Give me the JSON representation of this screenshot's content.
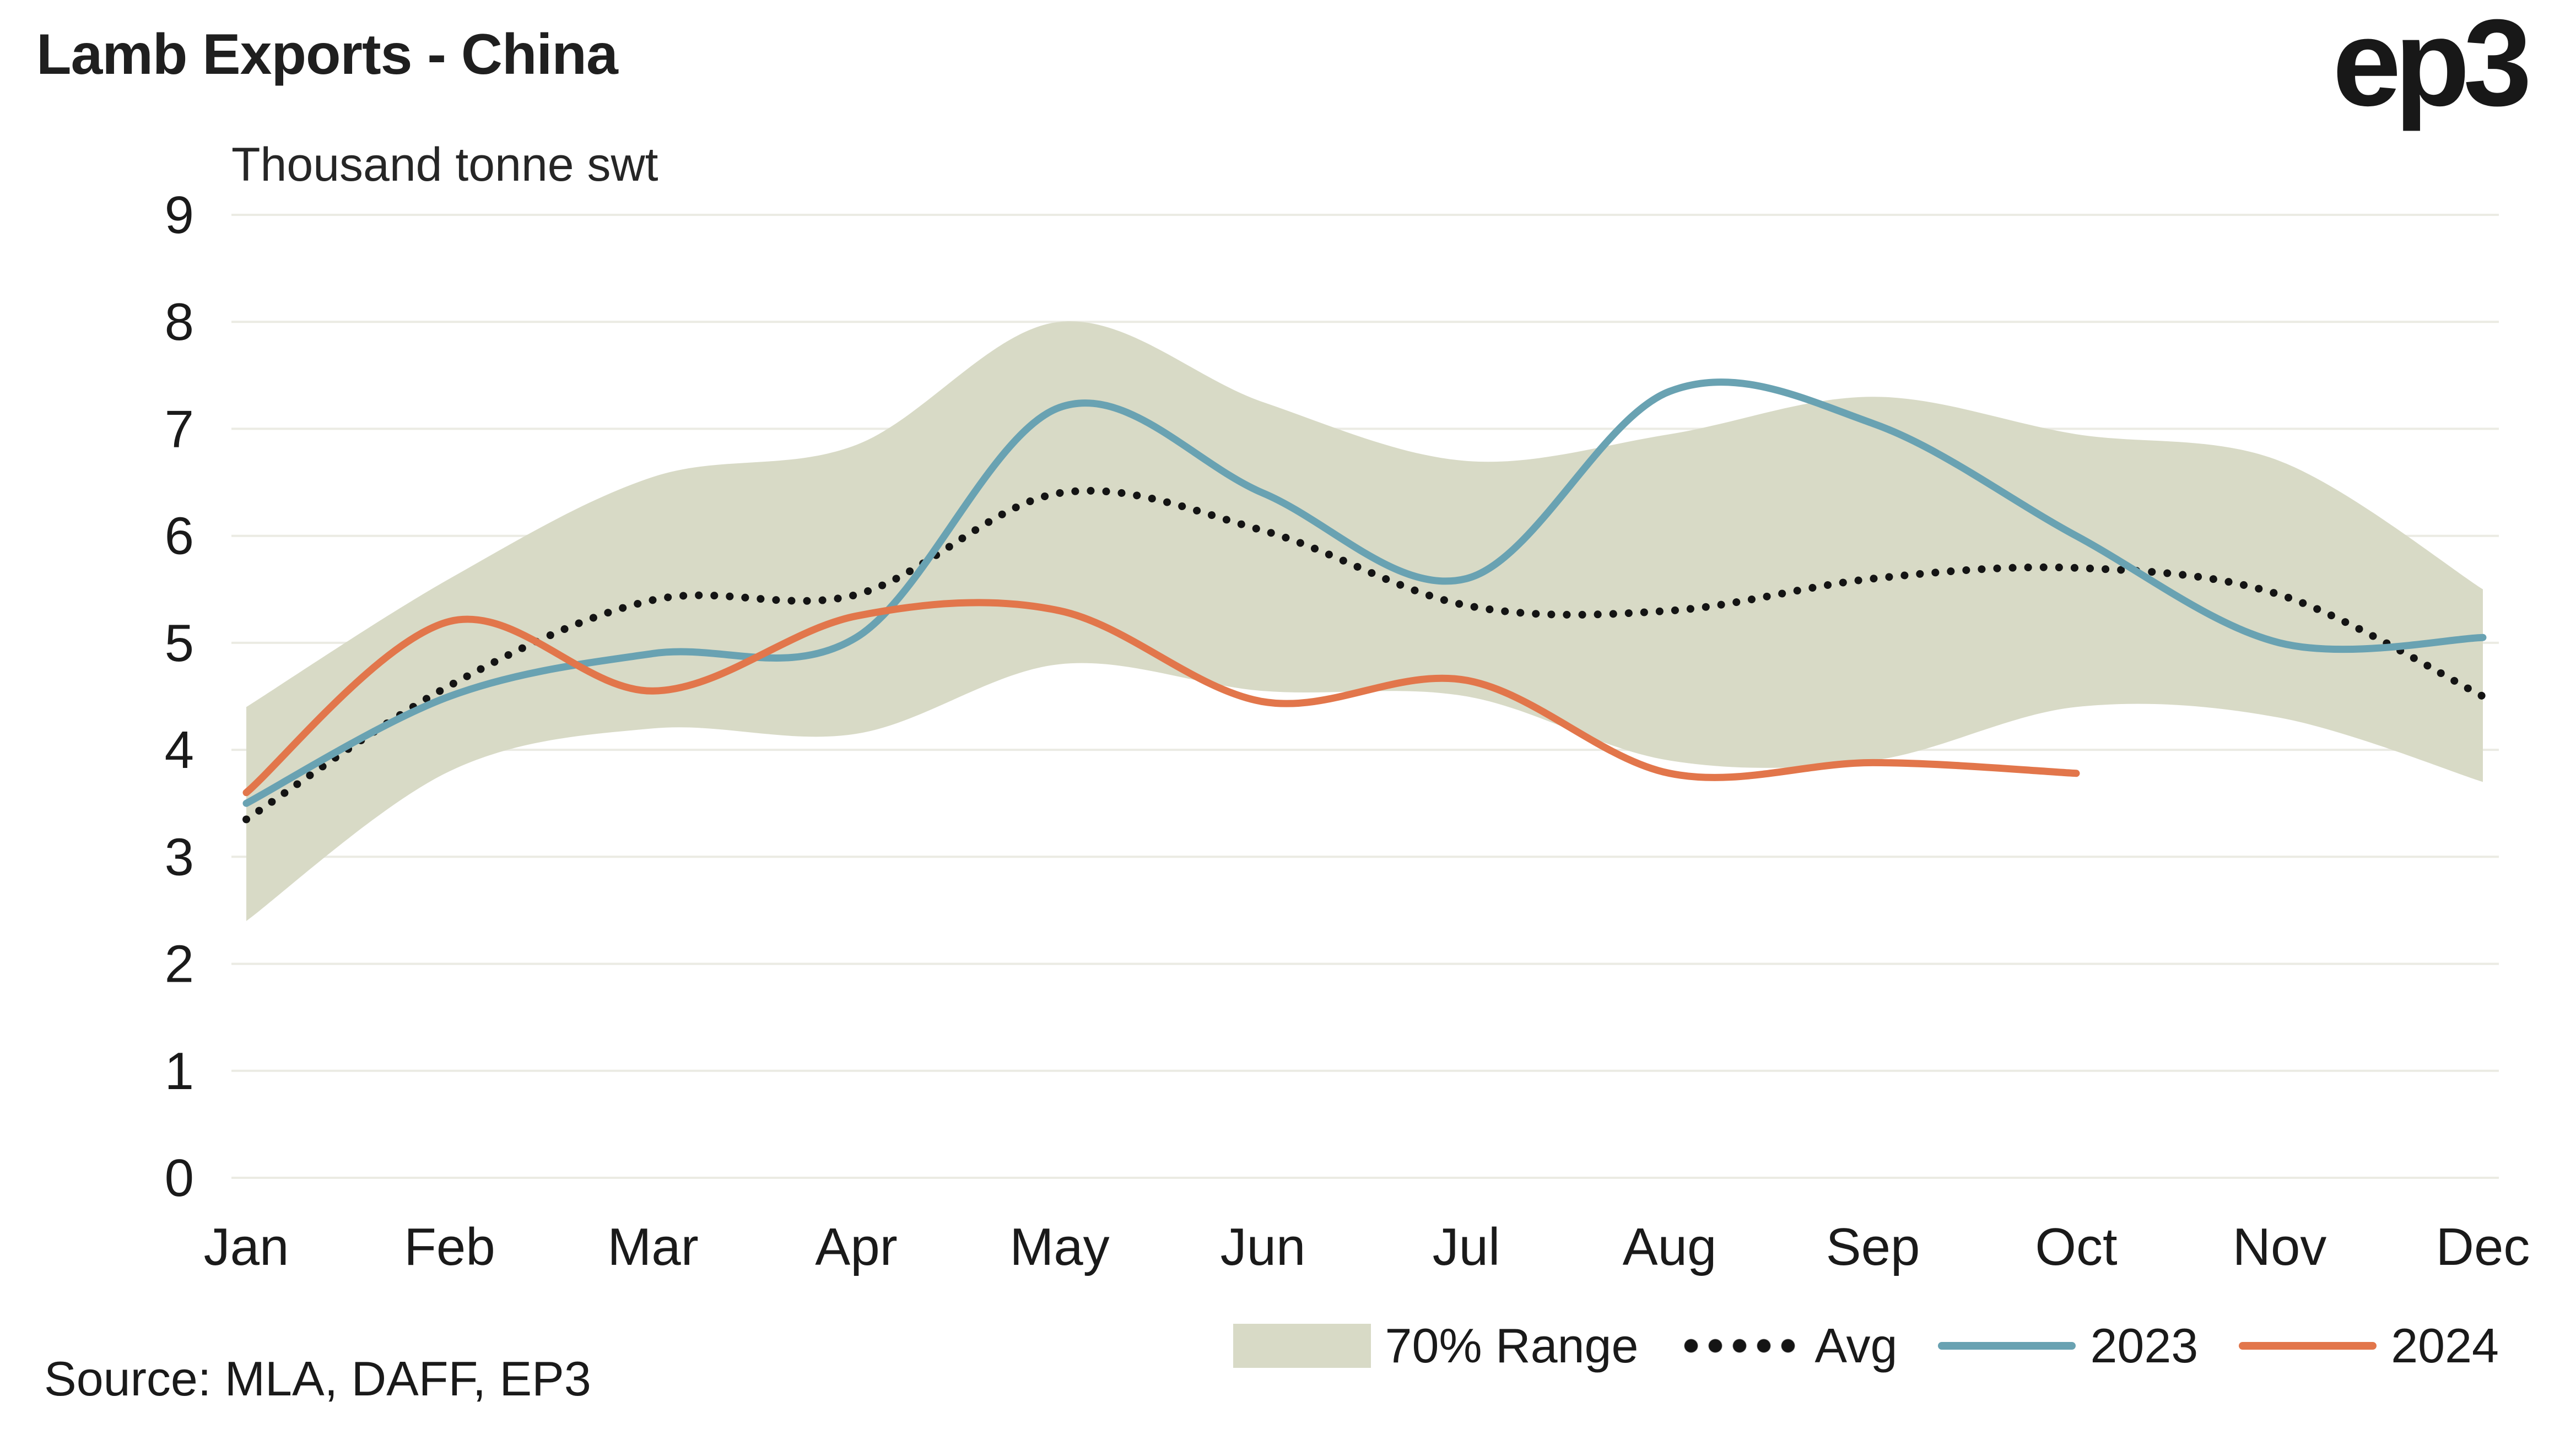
{
  "brand": {
    "logo": "ep3"
  },
  "chart_data": {
    "type": "line",
    "title": "Lamb Exports - China",
    "subtitle": "Thousand tonne swt",
    "source": "Source: MLA, DAFF, EP3",
    "x": [
      "Jan",
      "Feb",
      "Mar",
      "Apr",
      "May",
      "Jun",
      "Jul",
      "Aug",
      "Sep",
      "Oct",
      "Nov",
      "Dec"
    ],
    "ylim": [
      0,
      9
    ],
    "yticks": [
      0,
      1,
      2,
      3,
      4,
      5,
      6,
      7,
      8,
      9
    ],
    "grid": "horizontal",
    "legend_position": "bottom",
    "colors": {
      "band": "#d8dac6",
      "avg": "#141414",
      "y2023": "#69a2b2",
      "y2024": "#e2764b",
      "grid": "#ebebe3",
      "text": "#1a1a1a"
    },
    "band": {
      "name": "70% Range",
      "upper": [
        4.4,
        5.6,
        6.55,
        6.85,
        8.0,
        7.25,
        6.7,
        6.95,
        7.3,
        6.95,
        6.7,
        5.5
      ],
      "lower": [
        2.4,
        3.8,
        4.2,
        4.15,
        4.8,
        4.55,
        4.5,
        3.9,
        3.9,
        4.4,
        4.3,
        3.7
      ]
    },
    "series": [
      {
        "name": "Avg",
        "style": "dotted",
        "color": "#141414",
        "values": [
          3.35,
          4.6,
          5.4,
          5.45,
          6.4,
          6.05,
          5.35,
          5.3,
          5.6,
          5.7,
          5.45,
          4.5
        ]
      },
      {
        "name": "2023",
        "style": "solid",
        "color": "#69a2b2",
        "values": [
          3.5,
          4.5,
          4.9,
          5.05,
          7.2,
          6.4,
          5.6,
          7.35,
          7.05,
          6.0,
          5.0,
          5.05
        ]
      },
      {
        "name": "2024",
        "style": "solid",
        "color": "#e2764b",
        "values": [
          3.6,
          5.2,
          4.55,
          5.25,
          5.3,
          4.45,
          4.65,
          3.78,
          3.88,
          3.78,
          null,
          null
        ]
      }
    ]
  }
}
